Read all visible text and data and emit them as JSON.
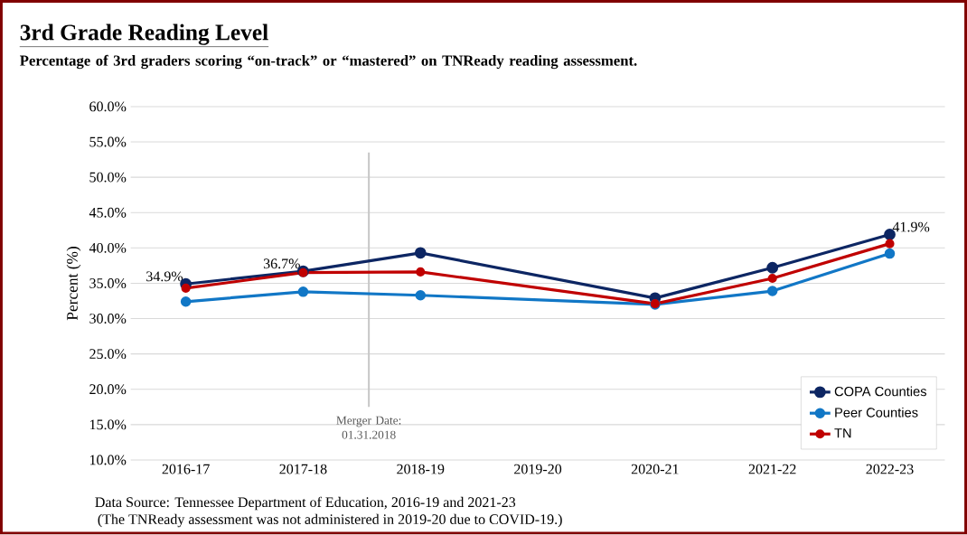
{
  "chart_data": {
    "type": "line",
    "title": "3rd Grade Reading Level",
    "subtitle": "Percentage of 3rd graders scoring “on-track” or “mastered” on TNReady reading assessment.",
    "ylabel": "Percent (%)",
    "categories": [
      "2016-17",
      "2017-18",
      "2018-19",
      "2019-20",
      "2020-21",
      "2021-22",
      "2022-23"
    ],
    "series": [
      {
        "name": "COPA Counties",
        "color": "#0d2663",
        "values": [
          34.9,
          36.7,
          39.3,
          null,
          32.9,
          37.2,
          41.9
        ],
        "value_labels": [
          "34.9%",
          "36.7%",
          null,
          null,
          null,
          null,
          "41.9%"
        ]
      },
      {
        "name": "Peer Counties",
        "color": "#1177c6",
        "values": [
          32.4,
          33.8,
          33.3,
          null,
          32.0,
          33.9,
          39.2
        ]
      },
      {
        "name": "TN",
        "color": "#c00000",
        "values": [
          34.3,
          36.5,
          36.6,
          null,
          32.1,
          35.7,
          40.6
        ]
      }
    ],
    "ylim": [
      10,
      60
    ],
    "yticks": [
      {
        "value": 10,
        "label": "10.0%"
      },
      {
        "value": 15,
        "label": "15.0%"
      },
      {
        "value": 20,
        "label": "20.0%"
      },
      {
        "value": 25,
        "label": "25.0%"
      },
      {
        "value": 30,
        "label": "30.0%"
      },
      {
        "value": 35,
        "label": "35.0%"
      },
      {
        "value": 40,
        "label": "40.0%"
      },
      {
        "value": 45,
        "label": "45.0%"
      },
      {
        "value": 50,
        "label": "50.0%"
      },
      {
        "value": 55,
        "label": "55.0%"
      },
      {
        "value": 60,
        "label": "60.0%"
      }
    ],
    "grid": "y",
    "legend": "bottom right",
    "marker": "circle",
    "line_style": "solid",
    "annotations": [
      "Merger Date: 01.31.2018",
      "Data Source: Tennessee Department of Education, 2016-19 and 2021-23",
      "(The TNReady assessment was not administered in 2019-20 due to COVID-19.)"
    ]
  }
}
